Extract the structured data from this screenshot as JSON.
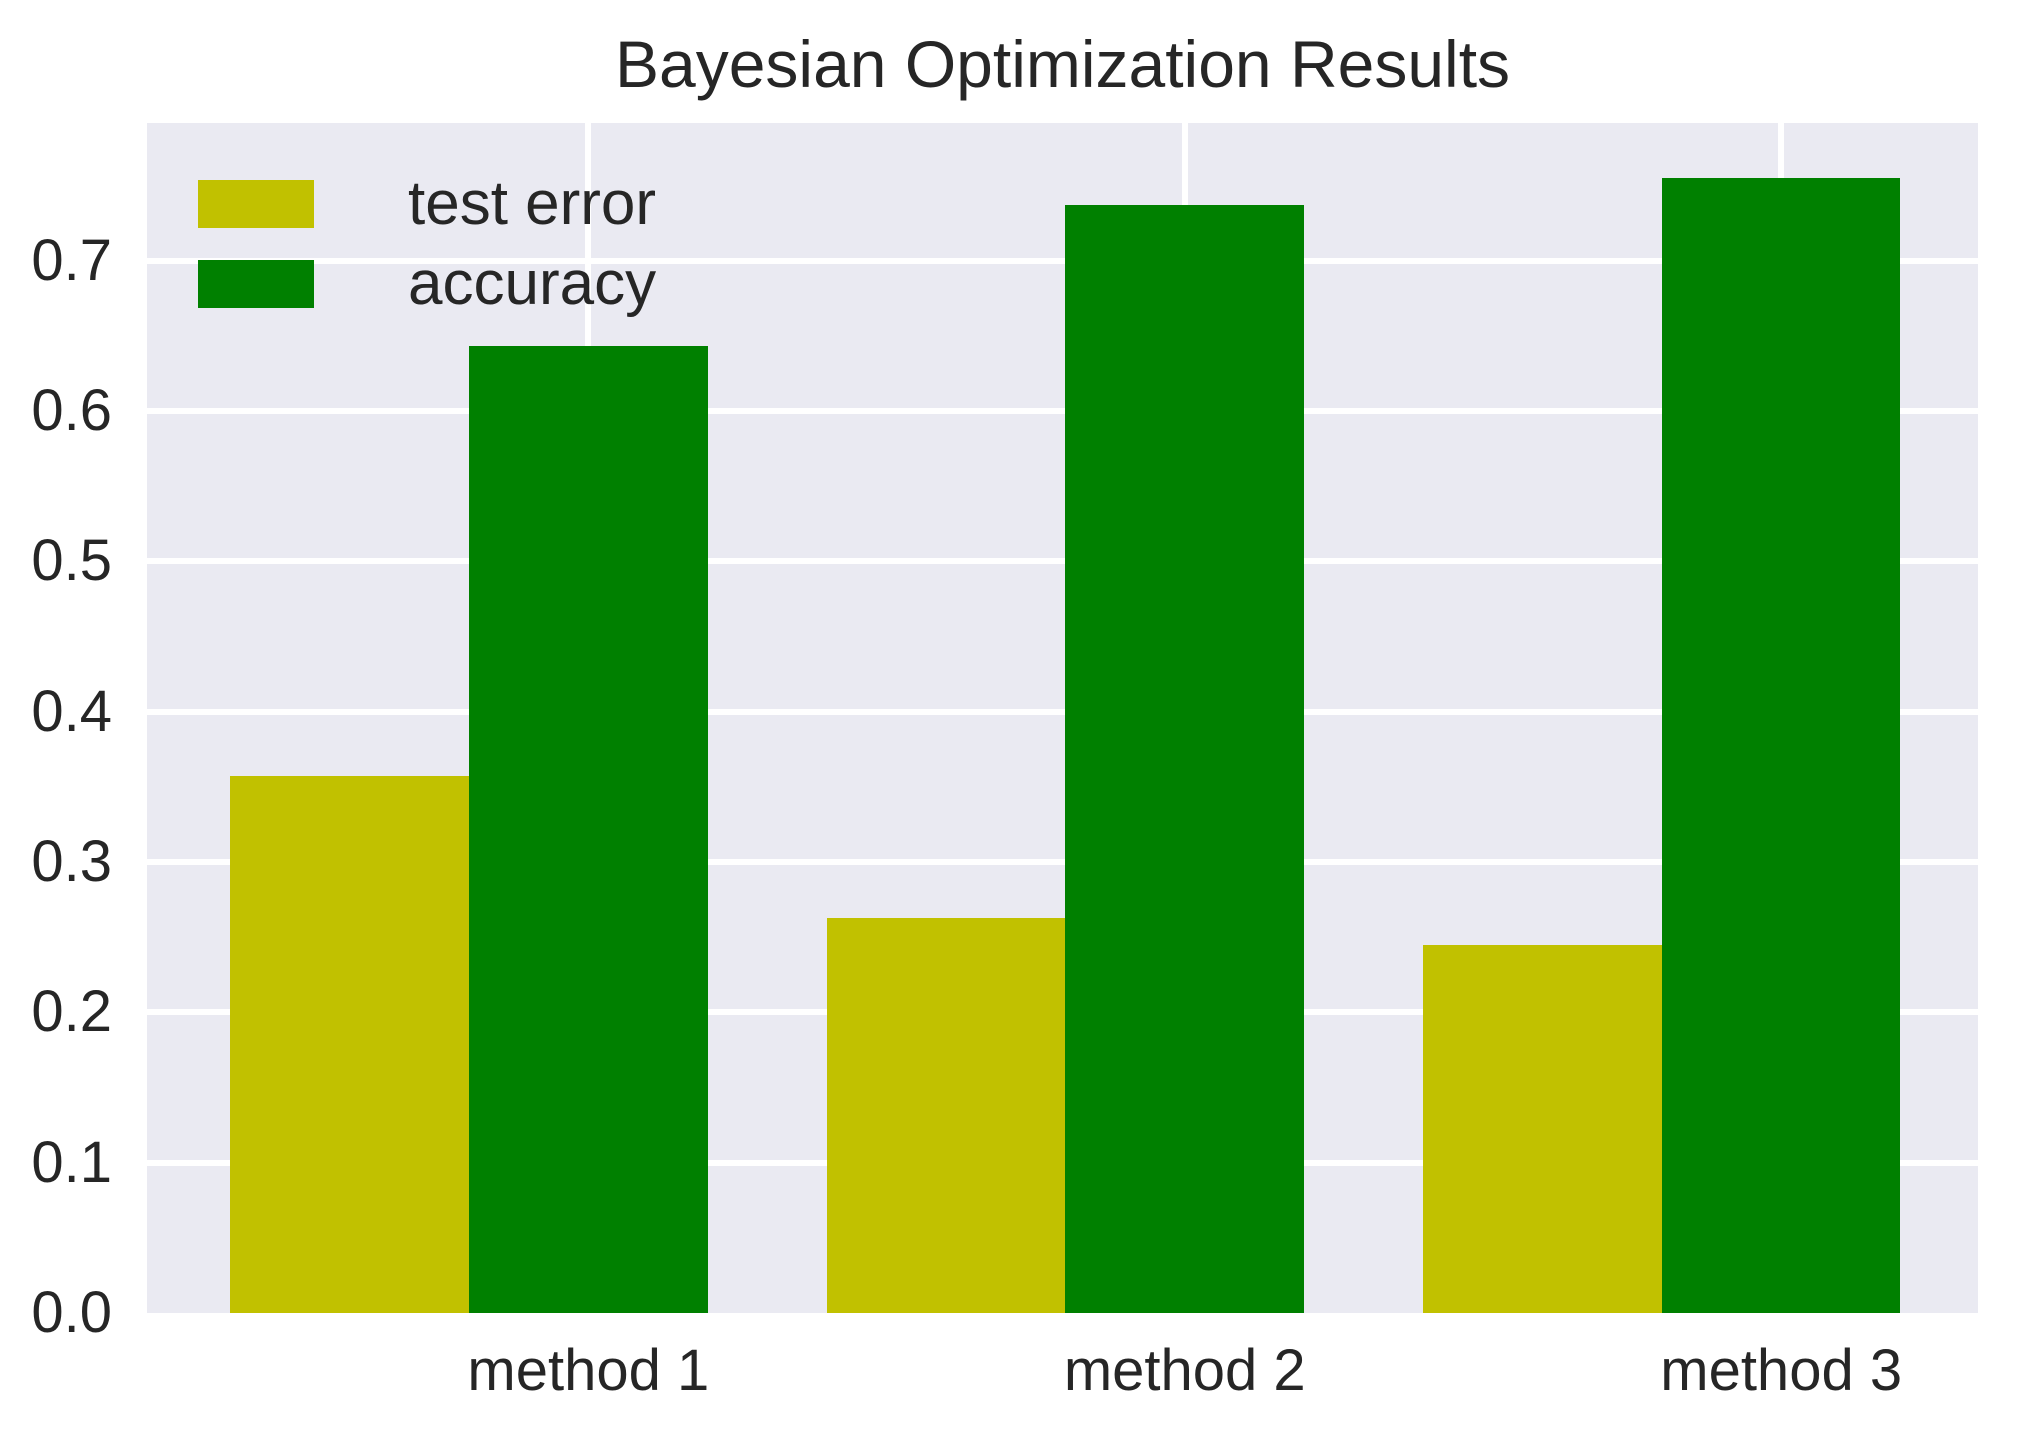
{
  "title": "Bayesian Optimization Results",
  "colors": {
    "figure_bg": "#ffffff",
    "plot_bg": "#eaeaf2",
    "grid": "#ffffff",
    "text": "#262626"
  },
  "chart_data": {
    "type": "bar",
    "title": "Bayesian Optimization Results",
    "categories": [
      "method 1",
      "method 2",
      "method 3"
    ],
    "series": [
      {
        "name": "test error",
        "color": "#c1c100",
        "values": [
          0.357,
          0.263,
          0.245
        ]
      },
      {
        "name": "accuracy",
        "color": "#008000",
        "values": [
          0.643,
          0.737,
          0.755
        ]
      }
    ],
    "xlabel": "",
    "ylabel": "",
    "yticks": [
      0.0,
      0.1,
      0.2,
      0.3,
      0.4,
      0.5,
      0.6,
      0.7
    ],
    "ylim": [
      0,
      0.7915
    ],
    "grid": true,
    "grid_orientation": "both",
    "legend_position": "upper-left",
    "bar_group_layout": "series offset at -0.4 and 0.0 category units, bar width 0.4"
  }
}
